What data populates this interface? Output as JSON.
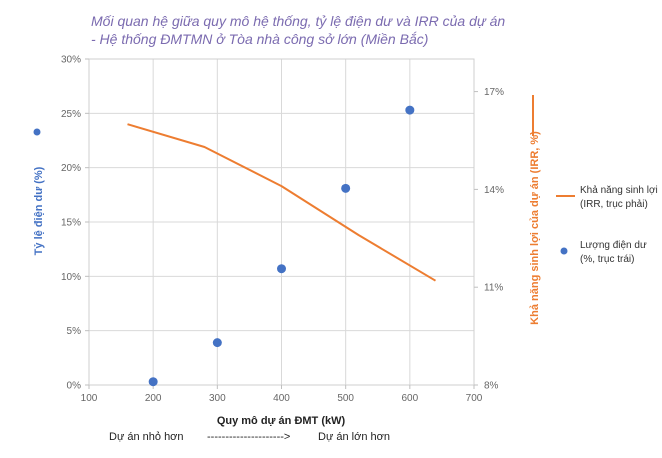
{
  "chart_data": {
    "type": "combo",
    "title_line1": "Mối quan hệ giữa quy mô hệ thống, tỷ lệ điện dư và IRR của dự án",
    "title_line2": "- Hệ thống ĐMTMN ở Tòa nhà công sở lớn (Miền Bắc)",
    "xlabel": "Quy mô dự án ĐMT (kW)",
    "ylabel_left": "Tỷ lệ điện dư (%)",
    "ylabel_right": "Khả năng sinh lợi của dự án (IRR, %)",
    "xlim": [
      100,
      700
    ],
    "ylim_left": [
      0,
      30
    ],
    "ylim_right": [
      8,
      18
    ],
    "x_ticks": [
      "100",
      "200",
      "300",
      "400",
      "500",
      "600",
      "700"
    ],
    "y_left_ticks": [
      "0%",
      "5%",
      "10%",
      "15%",
      "20%",
      "25%",
      "30%"
    ],
    "y_right_ticks": [
      "8%",
      "11%",
      "14%",
      "17%"
    ],
    "grid": true,
    "series": [
      {
        "name": "Lượng điện dư",
        "legend_line1": "Lượng điện dư",
        "legend_line2": "(%, trục trái)",
        "type": "scatter",
        "axis": "left",
        "color": "#4472c4",
        "x": [
          200,
          300,
          400,
          500,
          600
        ],
        "y": [
          0.3,
          3.9,
          10.7,
          18.1,
          25.3
        ]
      },
      {
        "name": "Khả năng sinh lợi",
        "legend_line1": "Khả năng sinh lợi",
        "legend_line2": "(IRR, trục phải)",
        "type": "line",
        "axis": "right",
        "color": "#ed7d31",
        "x": [
          160,
          280,
          400,
          520,
          640
        ],
        "y": [
          16.0,
          15.3,
          14.1,
          12.6,
          11.2
        ]
      }
    ]
  },
  "notes": {
    "small": "Dự án nhỏ hơn",
    "arrow": "--------------------->",
    "large": "Dự án lớn hơn"
  }
}
